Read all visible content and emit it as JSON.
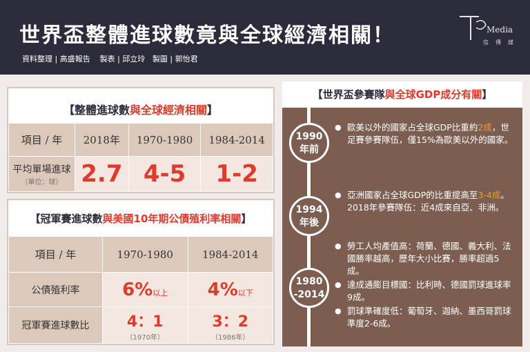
{
  "header": {
    "title": "世界盃整體進球數竟與全球經濟相關！",
    "credits": "資料整理 | 高盛報告    製表 | 邱立玲   製圖 | 郭怡君",
    "logo_text": "Media",
    "logo_sub": "信傳媒"
  },
  "table1": {
    "title_a": "【整體進球數",
    "title_b": "與全球經濟相關",
    "title_c": "】",
    "header_label": "項目 / 年",
    "years": [
      "2018年",
      "1970-1980",
      "1984-2014"
    ],
    "row_label": "平均單場進球",
    "row_unit": "（單位：球）",
    "values": [
      "2.7",
      "4-5",
      "1-2"
    ]
  },
  "table2": {
    "title_a": "【冠軍賽進球數",
    "title_b": "與美國10年期公債殖利率相關",
    "title_c": "】",
    "header_label": "項目 / 年",
    "years": [
      "1970-1980",
      "1984-2014"
    ],
    "row1_label": "公債殖利率",
    "row1_values": [
      "6%",
      "4%"
    ],
    "row1_suffix": [
      "以上",
      "以下"
    ],
    "row2_label": "冠軍賽進球數比",
    "row2_values": [
      "4：1",
      "3：2"
    ],
    "row2_notes": [
      "（1970年）",
      "（1986年）"
    ]
  },
  "right": {
    "title_a": "【世界盃參賽隊",
    "title_b": "與全球GDP成分有關",
    "title_c": "】",
    "periods": [
      {
        "l1": "1990",
        "l2": "年前"
      },
      {
        "l1": "1994",
        "l2": "年後"
      },
      {
        "l1": "1980",
        "l2": "-2014"
      }
    ],
    "p1_a": "歐美以外的國家占全球GDP比重約",
    "p1_hl": "2成",
    "p1_b": "，世足賽參賽隊伍，僅15%為歐美以外的國家。",
    "p2_a": "亞洲國家占全球GDP的比重提高至",
    "p2_hl": "3-4成",
    "p2_b": "。2018年參賽隊伍：近4成來自亞、非洲。",
    "p3": [
      "勞工人均產值高：荷蘭、德國、義大利、法國勝率越高，歷年大小比賽，勝率超過5成。",
      "達成通膨目標國：比利時、德國罰球進球率9成。",
      "罰球準確度低：葡萄牙、迦納、墨西哥罰球準度2-6成。"
    ]
  },
  "colors": {
    "header_bg": "#2c2b3b",
    "accent_red": "#e03a2a",
    "panel_brown": "#7b5e50",
    "cell_tan": "#ddc9bc",
    "highlight_orange": "#f29a3a"
  }
}
